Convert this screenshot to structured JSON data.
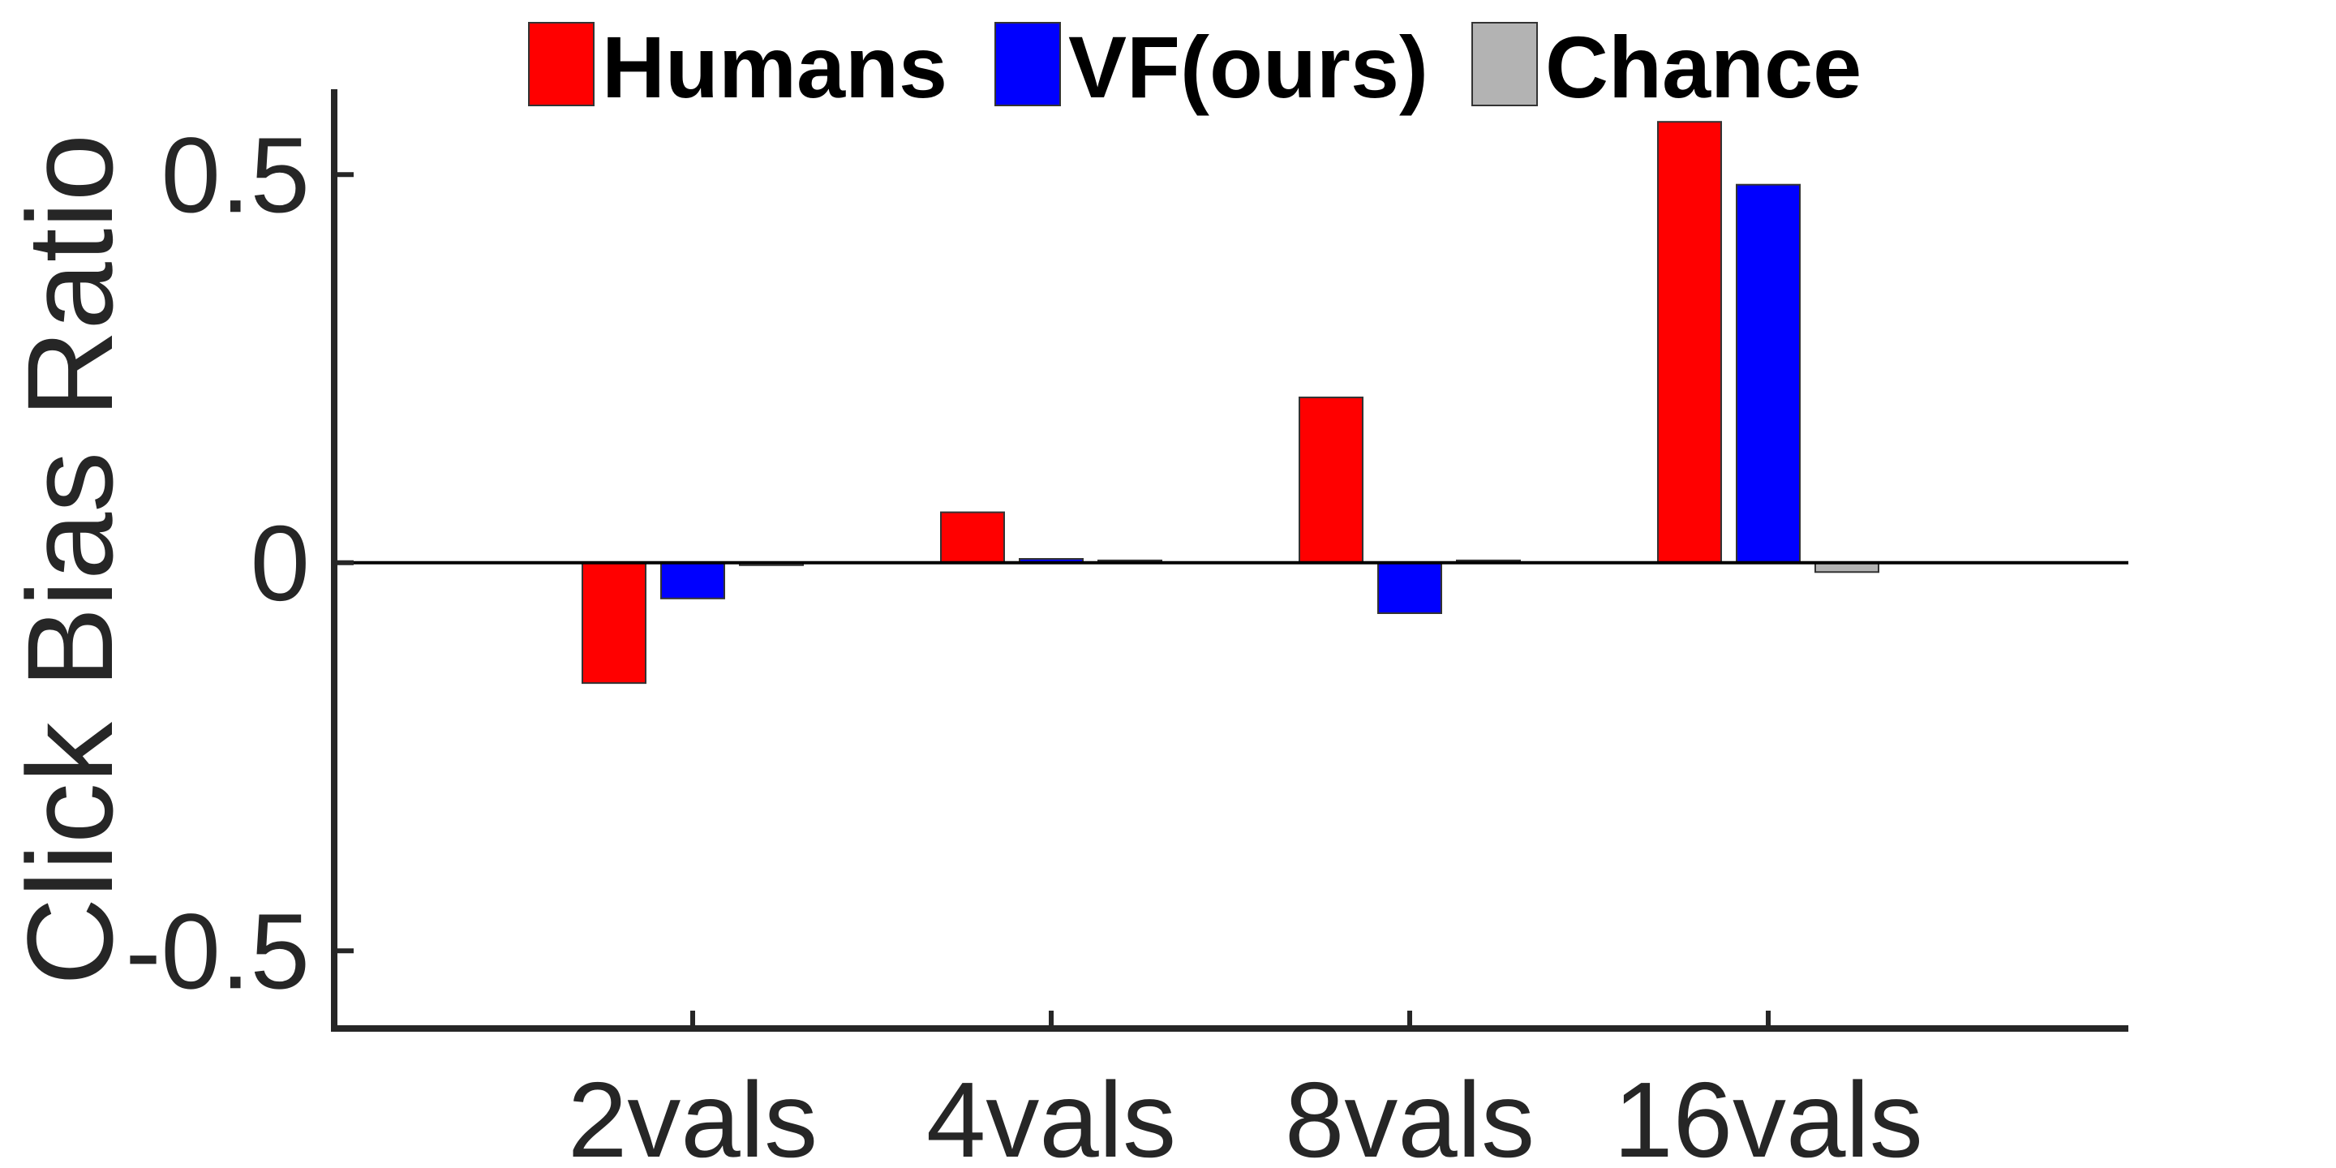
{
  "chart_data": {
    "type": "bar",
    "categories": [
      "2vals",
      "4vals",
      "8vals",
      "16vals"
    ],
    "series": [
      {
        "name": "Humans",
        "color": "#ff0000",
        "values": [
          -0.155,
          0.065,
          0.213,
          0.568
        ]
      },
      {
        "name": "VF(ours)",
        "color": "#0000ff",
        "values": [
          -0.046,
          0.005,
          -0.065,
          0.487
        ]
      },
      {
        "name": "Chance",
        "color": "#b3b3b3",
        "values": [
          -0.002,
          0.003,
          0.003,
          -0.012
        ]
      }
    ],
    "xlabel": "",
    "ylabel": "Click Bias Ratio",
    "ylim": [
      -0.6,
      0.61
    ],
    "yticks": [
      -0.5,
      0,
      0.5
    ],
    "ytick_labels": [
      "-0.5",
      "0",
      "0.5"
    ],
    "legend": "top",
    "grid": false
  }
}
